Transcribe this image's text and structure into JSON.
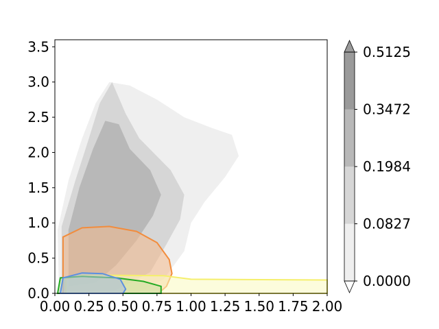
{
  "chart_data": {
    "type": "heatmap",
    "title": "",
    "xlabel": "",
    "ylabel": "",
    "xlim": [
      0,
      2
    ],
    "ylim": [
      0,
      3.6
    ],
    "x_ticks": [
      "0.00",
      "0.25",
      "0.50",
      "0.75",
      "1.00",
      "1.25",
      "1.50",
      "1.75",
      "2.00"
    ],
    "y_ticks": [
      "0.0",
      "0.5",
      "1.0",
      "1.5",
      "2.0",
      "2.5",
      "3.0",
      "3.5"
    ],
    "grid": false,
    "colorbar": {
      "levels": [
        "0.0000",
        "0.0827",
        "0.1984",
        "0.3472",
        "0.5125"
      ],
      "colors": [
        "#ffffff",
        "#efefef",
        "#d6d6d6",
        "#b8b8b8",
        "#9a9a9a"
      ],
      "extend": "both"
    },
    "density_regions": [
      {
        "level": 1,
        "color": "#efefef",
        "points": [
          [
            0.03,
            0.0
          ],
          [
            0.02,
            0.9
          ],
          [
            0.1,
            1.6
          ],
          [
            0.2,
            2.2
          ],
          [
            0.3,
            2.7
          ],
          [
            0.4,
            3.0
          ],
          [
            0.55,
            2.95
          ],
          [
            0.75,
            2.75
          ],
          [
            0.95,
            2.5
          ],
          [
            1.15,
            2.35
          ],
          [
            1.3,
            2.25
          ],
          [
            1.35,
            1.95
          ],
          [
            1.25,
            1.65
          ],
          [
            1.1,
            1.3
          ],
          [
            1.0,
            1.0
          ],
          [
            0.95,
            0.6
          ],
          [
            0.8,
            0.2
          ],
          [
            0.6,
            0.0
          ]
        ]
      },
      {
        "level": 2,
        "color": "#d6d6d6",
        "points": [
          [
            0.05,
            0.05
          ],
          [
            0.05,
            0.95
          ],
          [
            0.15,
            1.6
          ],
          [
            0.25,
            2.2
          ],
          [
            0.33,
            2.7
          ],
          [
            0.42,
            3.0
          ],
          [
            0.52,
            2.55
          ],
          [
            0.62,
            2.2
          ],
          [
            0.85,
            1.75
          ],
          [
            0.95,
            1.4
          ],
          [
            0.92,
            1.05
          ],
          [
            0.82,
            0.7
          ],
          [
            0.7,
            0.3
          ],
          [
            0.45,
            0.05
          ]
        ]
      },
      {
        "level": 3,
        "color": "#b8b8b8",
        "points": [
          [
            0.1,
            0.1
          ],
          [
            0.1,
            0.9
          ],
          [
            0.18,
            1.5
          ],
          [
            0.28,
            2.05
          ],
          [
            0.37,
            2.45
          ],
          [
            0.47,
            2.4
          ],
          [
            0.55,
            2.05
          ],
          [
            0.7,
            1.75
          ],
          [
            0.78,
            1.4
          ],
          [
            0.72,
            1.1
          ],
          [
            0.6,
            0.75
          ],
          [
            0.45,
            0.4
          ],
          [
            0.3,
            0.15
          ]
        ]
      }
    ],
    "contours": [
      {
        "color": "#f28c3c",
        "fill": "#f4b98c",
        "points": [
          [
            0.06,
            0.0
          ],
          [
            0.06,
            0.8
          ],
          [
            0.2,
            0.93
          ],
          [
            0.4,
            0.95
          ],
          [
            0.6,
            0.88
          ],
          [
            0.75,
            0.72
          ],
          [
            0.84,
            0.48
          ],
          [
            0.86,
            0.28
          ],
          [
            0.82,
            0.1
          ],
          [
            0.76,
            0.0
          ]
        ]
      },
      {
        "color": "#f5ef6b",
        "fill": "#fafac0",
        "points": [
          [
            0.08,
            0.0
          ],
          [
            0.08,
            0.2
          ],
          [
            0.2,
            0.26
          ],
          [
            0.8,
            0.25
          ],
          [
            1.0,
            0.2
          ],
          [
            2.0,
            0.19
          ],
          [
            2.0,
            0.0
          ]
        ]
      },
      {
        "color": "#22aa22",
        "fill": "#c8e0a0",
        "points": [
          [
            0.02,
            0.0
          ],
          [
            0.04,
            0.22
          ],
          [
            0.2,
            0.24
          ],
          [
            0.45,
            0.22
          ],
          [
            0.65,
            0.17
          ],
          [
            0.78,
            0.1
          ],
          [
            0.78,
            0.0
          ]
        ]
      },
      {
        "color": "#5b8fe0",
        "fill": "#a8bce0",
        "points": [
          [
            0.04,
            0.0
          ],
          [
            0.06,
            0.22
          ],
          [
            0.2,
            0.29
          ],
          [
            0.35,
            0.28
          ],
          [
            0.48,
            0.2
          ],
          [
            0.52,
            0.06
          ],
          [
            0.5,
            0.0
          ]
        ]
      }
    ]
  }
}
